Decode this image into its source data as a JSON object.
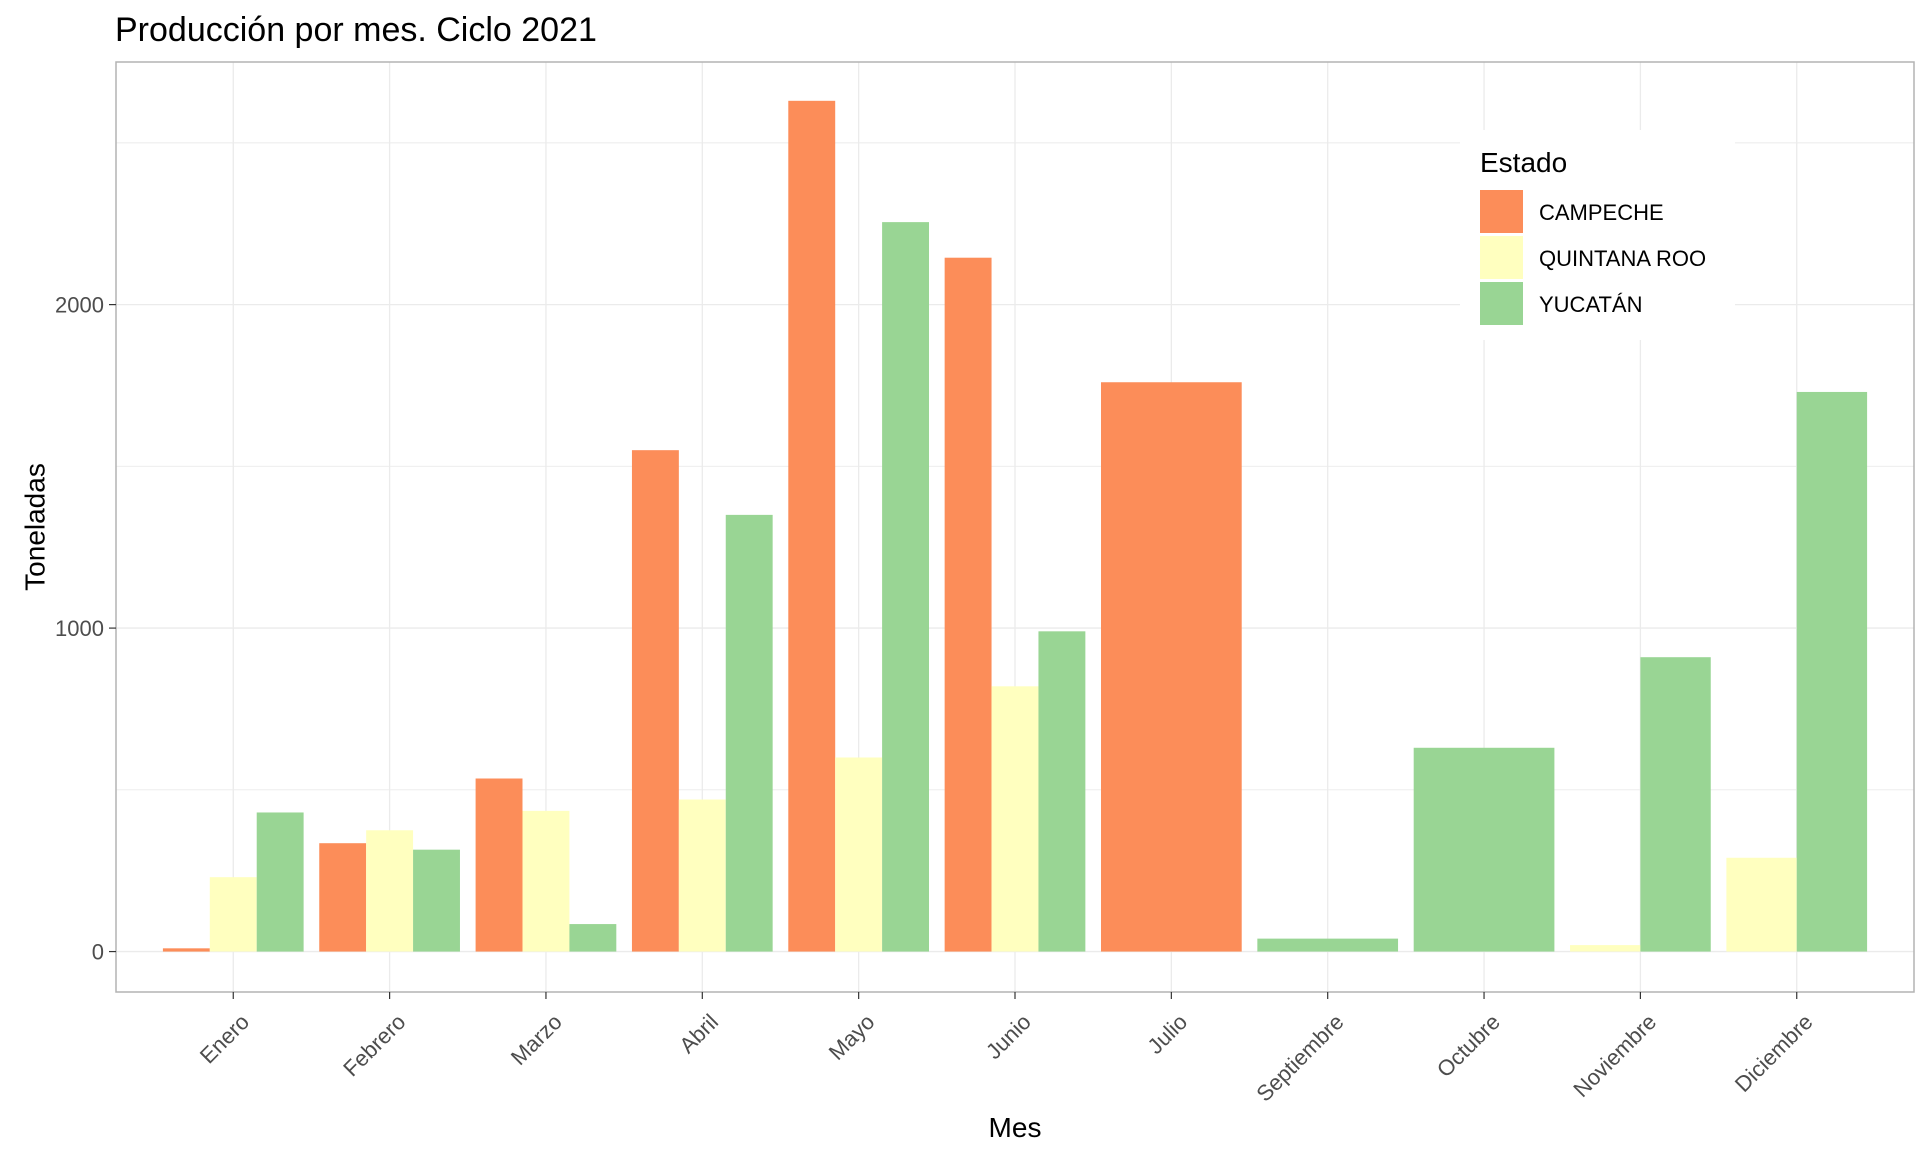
{
  "chart_data": {
    "type": "bar",
    "title": "Producción por mes. Ciclo 2021",
    "xlabel": "Mes",
    "ylabel": "Toneladas",
    "ylim": [
      -125,
      2750
    ],
    "yticks": [
      0,
      1000,
      2000
    ],
    "yticks_labels": [
      "0",
      "1000",
      "2000"
    ],
    "grid": true,
    "legend": {
      "title": "Estado",
      "position": "top-right"
    },
    "categories": [
      "Enero",
      "Febrero",
      "Marzo",
      "Abril",
      "Mayo",
      "Junio",
      "Julio",
      "Septiembre",
      "Octubre",
      "Noviembre",
      "Diciembre"
    ],
    "series": [
      {
        "name": "CAMPECHE",
        "color": "#FC8D59",
        "values": [
          10,
          335,
          535,
          1550,
          2630,
          2145,
          1760,
          null,
          null,
          null,
          null
        ]
      },
      {
        "name": "QUINTANA ROO",
        "color": "#FFFFBF",
        "values": [
          230,
          375,
          435,
          470,
          600,
          820,
          null,
          null,
          null,
          20,
          290
        ]
      },
      {
        "name": "YUCATÁN",
        "color": "#99D594",
        "values": [
          430,
          315,
          85,
          1350,
          2255,
          990,
          null,
          40,
          630,
          910,
          1730
        ]
      }
    ]
  }
}
